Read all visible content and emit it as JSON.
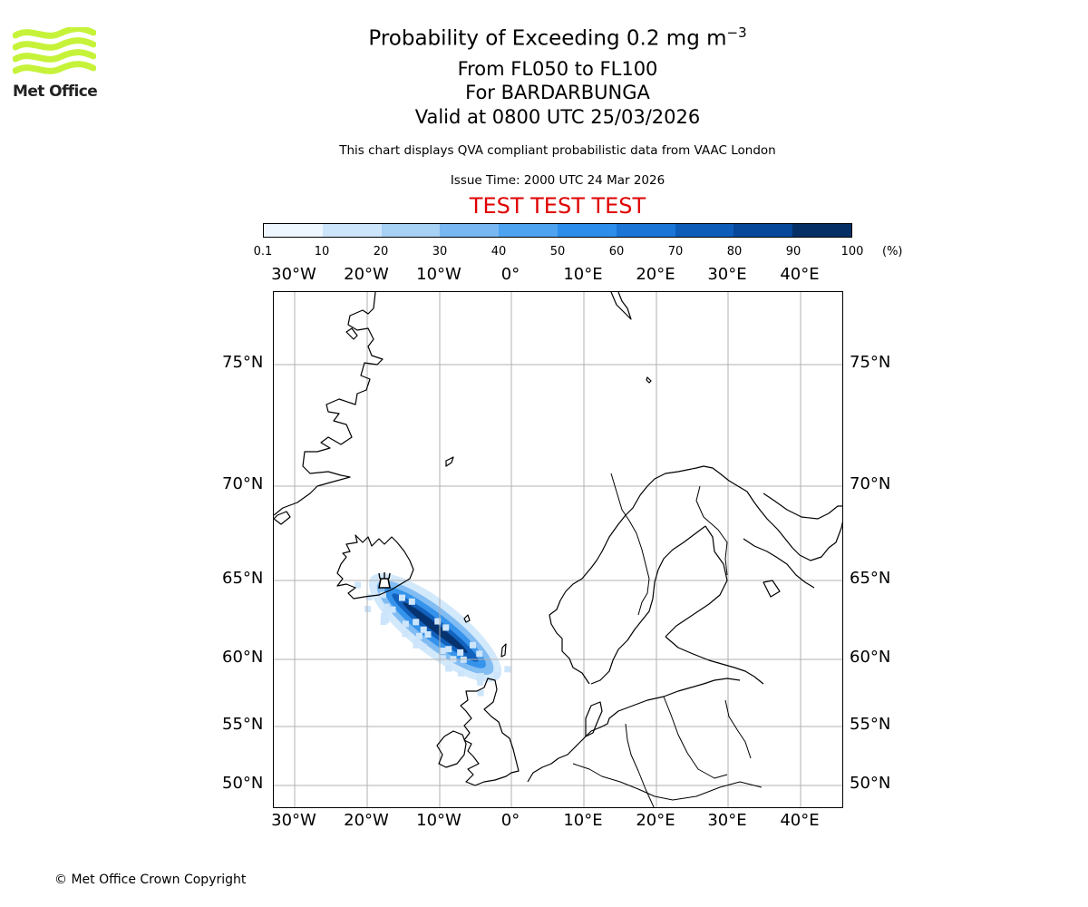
{
  "title": {
    "line1_prefix": "Probability of Exceeding 0.2 mg m",
    "line1_sup": "−3",
    "line2": "From FL050 to FL100",
    "line3": "For BARDARBUNGA",
    "line4": "Valid at 0800 UTC 25/03/2026"
  },
  "subtitle": "This chart displays QVA compliant probabilistic data from VAAC London",
  "issue_time": "Issue Time: 2000 UTC 24 Mar 2026",
  "test_banner": "TEST TEST TEST",
  "logo_text": "Met Office",
  "copyright": "© Met Office Crown Copyright",
  "colorbar": {
    "ticks": [
      "0.1",
      "10",
      "20",
      "30",
      "40",
      "50",
      "60",
      "70",
      "80",
      "90",
      "100"
    ],
    "unit": "(%)",
    "colors": [
      "#eef6ff",
      "#cde5fb",
      "#a7d0f5",
      "#78b7f2",
      "#4ea3f0",
      "#2c8eea",
      "#1a75d6",
      "#0d5cb8",
      "#07479a",
      "#062f66"
    ]
  },
  "map": {
    "lon_labels": [
      "30°W",
      "20°W",
      "10°W",
      "0°",
      "10°E",
      "20°E",
      "30°E",
      "40°E"
    ],
    "lat_labels": [
      "75°N",
      "70°N",
      "65°N",
      "60°N",
      "55°N",
      "50°N"
    ],
    "volcano_name": "BARDARBUNGA",
    "plume_levels": [
      0.2,
      0.4,
      0.6,
      0.8,
      0.95
    ],
    "colors": {
      "coast": "#000000",
      "grid": "#b0b0b0",
      "plume": "#1e88e5"
    }
  }
}
